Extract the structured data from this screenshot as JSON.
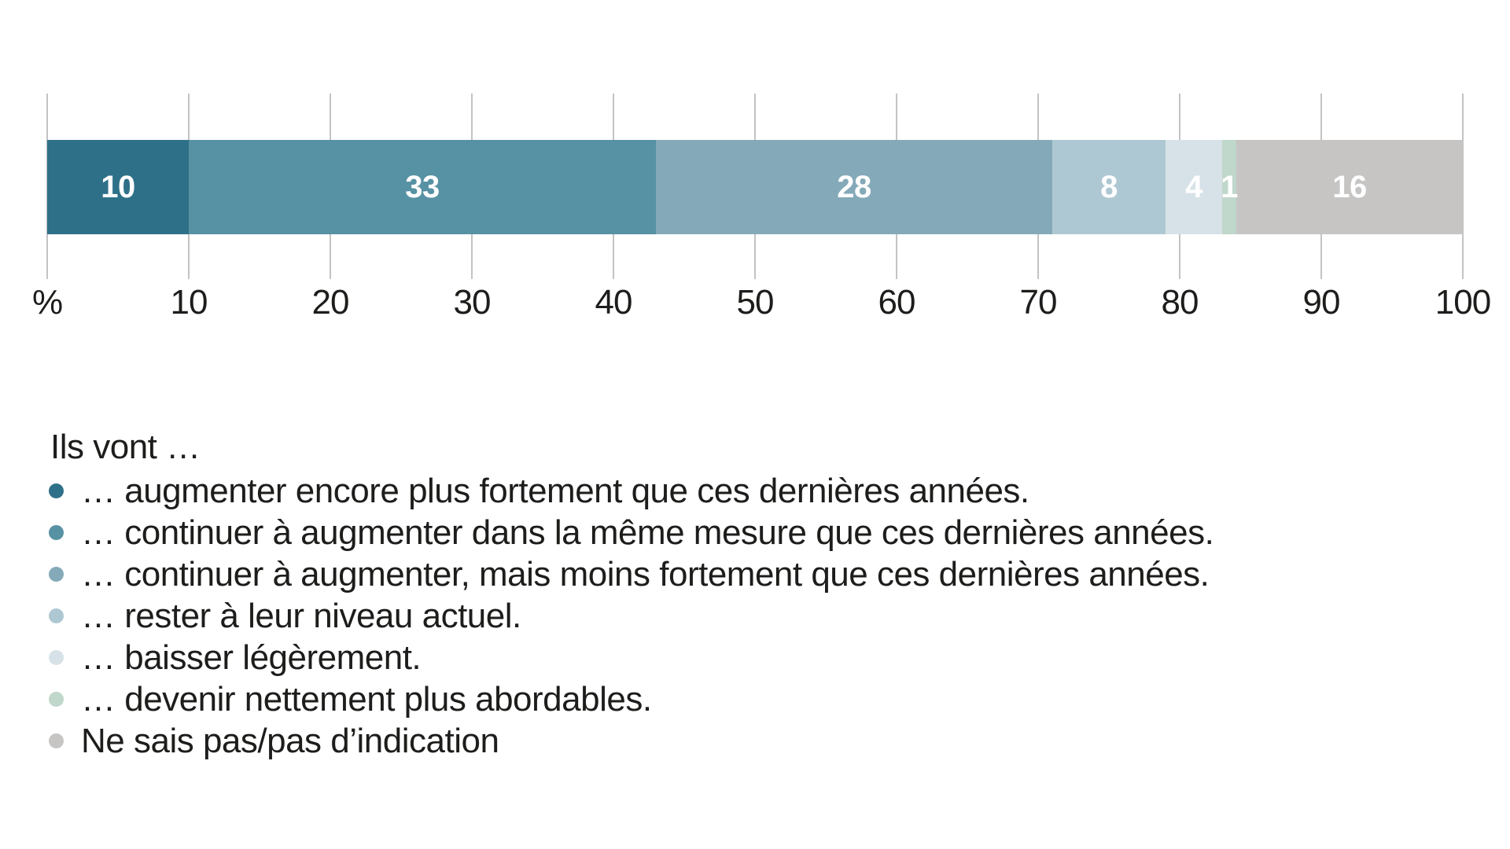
{
  "chart_data": {
    "type": "bar",
    "orientation": "horizontal-stacked",
    "title": "",
    "legend_title": "Ils vont …",
    "legend_position": "below",
    "grid": "vertical-ticks",
    "axis": {
      "min": 0,
      "max": 100,
      "tick_step": 10,
      "tick_labels": [
        "%",
        "10",
        "20",
        "30",
        "40",
        "50",
        "60",
        "70",
        "80",
        "90",
        "100"
      ]
    },
    "categories": [
      "… augmenter encore plus fortement que ces dernières années.",
      "… continuer à augmenter dans la même mesure que ces dernières années.",
      "… continuer à augmenter, mais moins fortement que ces dernières années.",
      "… rester à leur niveau actuel.",
      "… baisser légèrement.",
      "… devenir nettement plus abordables.",
      "Ne sais pas/pas d’indication"
    ],
    "values": [
      10,
      33,
      28,
      8,
      4,
      1,
      16
    ],
    "segments": [
      {
        "label": "… augmenter encore plus fortement que ces dernières années.",
        "value": 10,
        "value_label": "10",
        "color": "#2f7089"
      },
      {
        "label": "… continuer à augmenter dans la même mesure que ces dernières années.",
        "value": 33,
        "value_label": "33",
        "color": "#5791a4"
      },
      {
        "label": "… continuer à augmenter, mais moins fortement que ces dernières années.",
        "value": 28,
        "value_label": "28",
        "color": "#84aab9"
      },
      {
        "label": "… rester à leur niveau actuel.",
        "value": 8,
        "value_label": "8",
        "color": "#aec8d3"
      },
      {
        "label": "… baisser légèrement.",
        "value": 4,
        "value_label": "4",
        "color": "#d7e2e8"
      },
      {
        "label": "… devenir nettement plus abordables.",
        "value": 1,
        "value_label": "1",
        "color": "#c0d7cb"
      },
      {
        "label": "Ne sais pas/pas d’indication",
        "value": 16,
        "value_label": "16",
        "color": "#c6c5c4"
      }
    ],
    "colors": {
      "tick_line": "#c3c3c3",
      "text": "#1d1d1b",
      "bar_value_text": "#ffffff",
      "background": "#ffffff"
    }
  }
}
